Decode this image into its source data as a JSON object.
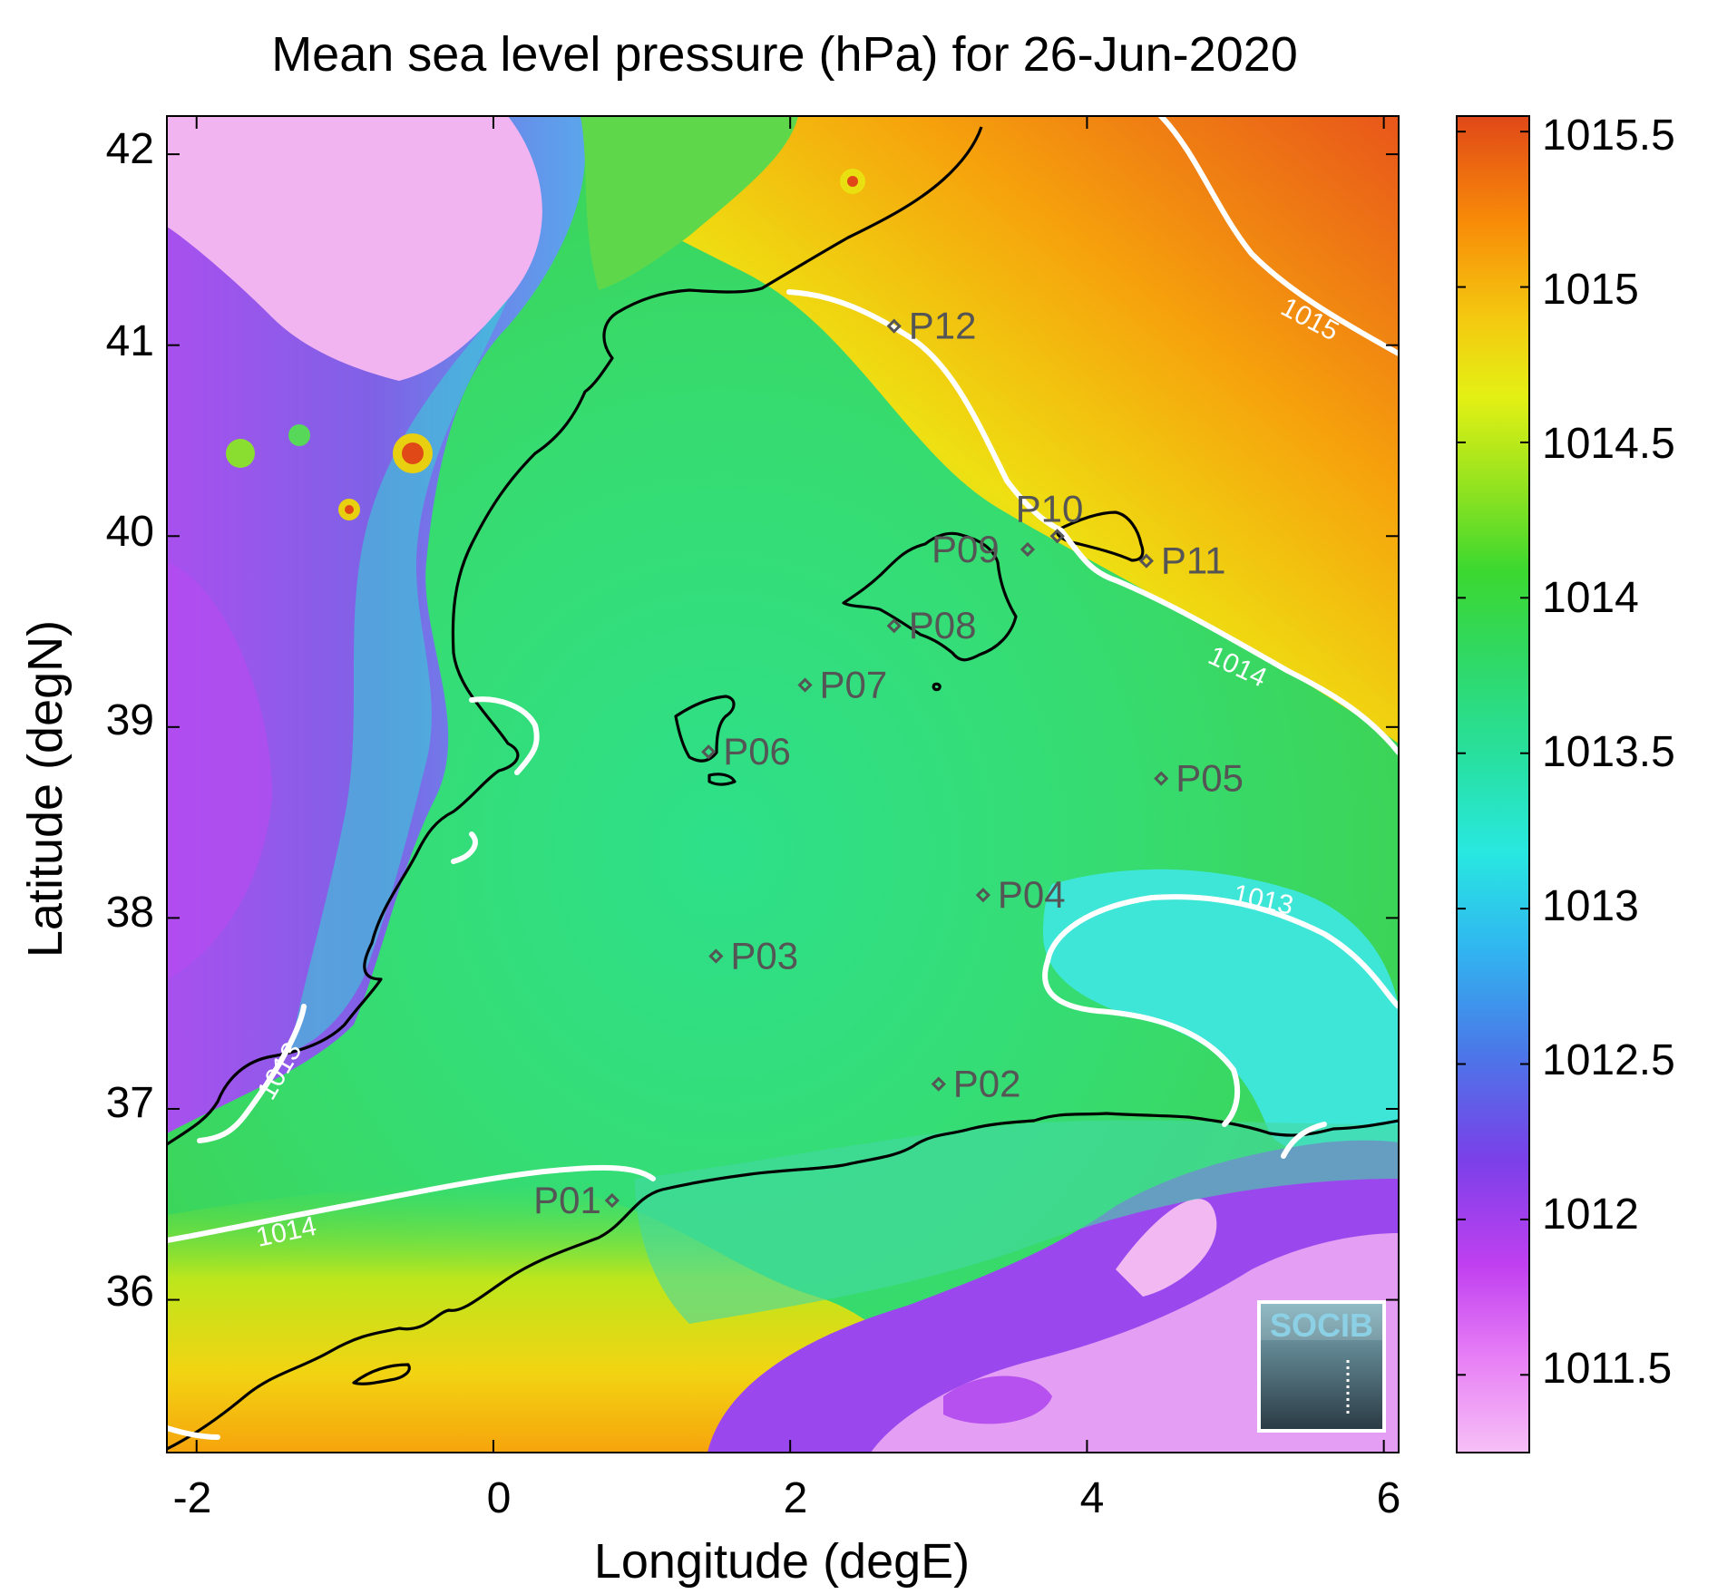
{
  "map": {
    "title": "Mean sea level pressure (hPa) for 26-Jun-2020",
    "xlabel": "Longitude (degE)",
    "ylabel": "Latitude (degN)",
    "x_ticks": [
      "-2",
      "0",
      "2",
      "4",
      "6"
    ],
    "y_ticks": [
      "36",
      "37",
      "38",
      "39",
      "40",
      "41",
      "42"
    ],
    "colorbar_ticks": [
      "1011.5",
      "1012",
      "1012.5",
      "1013",
      "1013.5",
      "1014",
      "1014.5",
      "1015",
      "1015.5"
    ],
    "contour_labels": [
      "1015",
      "1014",
      "1013",
      "1013",
      "1014"
    ],
    "logo_text": "SOCIB"
  },
  "chart_data": {
    "type": "heatmap",
    "title": "Mean sea level pressure (hPa) for 26-Jun-2020",
    "xlabel": "Longitude (degE)",
    "ylabel": "Latitude (degN)",
    "xlim": [
      -2.2,
      6.1
    ],
    "ylim": [
      35.2,
      42.2
    ],
    "color_range": [
      1011.25,
      1015.55
    ],
    "colormap": [
      "#f4b3f4",
      "#c040f0",
      "#7a40e8",
      "#4a78e8",
      "#30c8f0",
      "#28e0c0",
      "#30d868",
      "#38d030",
      "#88e020",
      "#d8f010",
      "#f0d010",
      "#f8a008",
      "#f07008",
      "#e05018"
    ],
    "stations": [
      {
        "name": "P01",
        "lon": 0.8,
        "lat": 36.52
      },
      {
        "name": "P02",
        "lon": 3.0,
        "lat": 37.13
      },
      {
        "name": "P03",
        "lon": 1.5,
        "lat": 37.8
      },
      {
        "name": "P04",
        "lon": 3.3,
        "lat": 38.12
      },
      {
        "name": "P05",
        "lon": 4.5,
        "lat": 38.73
      },
      {
        "name": "P06",
        "lon": 1.45,
        "lat": 38.87
      },
      {
        "name": "P07",
        "lon": 2.1,
        "lat": 39.22
      },
      {
        "name": "P08",
        "lon": 2.7,
        "lat": 39.53
      },
      {
        "name": "P09",
        "lon": 3.6,
        "lat": 39.93
      },
      {
        "name": "P10",
        "lon": 3.8,
        "lat": 40.0
      },
      {
        "name": "P11",
        "lon": 4.4,
        "lat": 39.87
      },
      {
        "name": "P12",
        "lon": 2.7,
        "lat": 41.1
      }
    ],
    "contour_levels": [
      1013,
      1014,
      1015
    ]
  }
}
